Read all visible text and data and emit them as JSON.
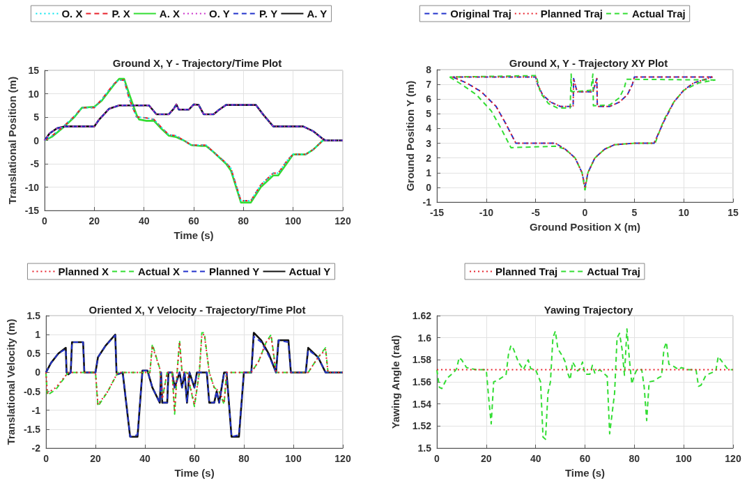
{
  "chart_data": [
    {
      "type": "line",
      "title": "Ground X, Y - Trajectory/Time Plot",
      "xlabel": "Time (s)",
      "ylabel": "Translational Position (m)",
      "xlim": [
        0,
        120
      ],
      "xticks": [
        0,
        20,
        40,
        60,
        80,
        100,
        120
      ],
      "ylim": [
        -15,
        15
      ],
      "yticks": [
        -15,
        -10,
        -5,
        0,
        5,
        10,
        15
      ],
      "grid": true,
      "legend": "top",
      "marker": "none",
      "series": [
        {
          "name": "O. X",
          "color": "#00e5ee",
          "line_style": "dotted",
          "x": [
            0,
            3,
            8,
            12,
            15,
            20,
            23,
            28,
            30,
            32,
            34,
            37,
            38,
            41,
            44,
            47,
            50,
            53,
            56,
            59,
            63,
            65,
            68,
            73,
            75,
            79,
            83,
            87,
            92,
            94,
            98,
            100,
            105,
            108,
            112,
            120
          ],
          "values": [
            0,
            1,
            3.2,
            5.2,
            7,
            7,
            8.8,
            12.2,
            12.9,
            12.9,
            9,
            5,
            5,
            4.8,
            4.5,
            2.8,
            1.2,
            1,
            0,
            -1,
            -1,
            -1,
            -2.5,
            -4.8,
            -6,
            -12.9,
            -12.9,
            -9.5,
            -7,
            -7,
            -4,
            -3,
            -3,
            -2,
            0,
            0
          ]
        },
        {
          "name": "P. X",
          "color": "#e8202a",
          "line_style": "dashed",
          "x": [
            0,
            3,
            8,
            12,
            15,
            20,
            23,
            28,
            30,
            32,
            34,
            37,
            38,
            41,
            44,
            47,
            50,
            53,
            56,
            59,
            63,
            65,
            68,
            73,
            75,
            79,
            83,
            87,
            92,
            94,
            98,
            100,
            105,
            108,
            112,
            120
          ],
          "values": [
            0,
            1,
            3.2,
            5.2,
            7,
            7,
            8.8,
            12.2,
            12.9,
            12.9,
            9,
            5,
            5,
            4.8,
            4.5,
            2.8,
            1.2,
            1,
            0,
            -1,
            -1,
            -1,
            -2.5,
            -4.8,
            -6,
            -12.9,
            -12.9,
            -9.5,
            -7,
            -7,
            -4,
            -3,
            -3,
            -2,
            0,
            0
          ]
        },
        {
          "name": "A. X",
          "color": "#33dd33",
          "line_style": "solid",
          "x": [
            0,
            3,
            8,
            12,
            15,
            20,
            23,
            28,
            30,
            32,
            34,
            37,
            38,
            41,
            44,
            47,
            50,
            53,
            56,
            59,
            63,
            65,
            68,
            73,
            75,
            79,
            83,
            87,
            92,
            94,
            98,
            100,
            105,
            108,
            112,
            120
          ],
          "values": [
            0,
            0.8,
            3,
            5,
            7,
            7.2,
            8.5,
            12,
            13.2,
            13.2,
            10,
            5.5,
            4.5,
            4.2,
            4.2,
            2.5,
            1,
            0.7,
            0,
            -1,
            -1.2,
            -1.2,
            -2.5,
            -5,
            -6.5,
            -13.3,
            -13.3,
            -10,
            -7.5,
            -7.5,
            -4.5,
            -3,
            -3,
            -2,
            0,
            0
          ]
        },
        {
          "name": "O. Y",
          "color": "#cc33cc",
          "line_style": "dotted",
          "x": [
            0,
            2,
            5,
            8,
            20,
            22,
            26,
            30,
            42,
            45,
            50,
            52,
            53,
            54,
            58,
            60,
            62,
            64,
            68,
            70,
            73,
            85,
            88,
            92,
            104,
            108,
            112,
            113,
            120
          ],
          "values": [
            0,
            1.5,
            2.6,
            3,
            3,
            4.5,
            6.8,
            7.5,
            7.5,
            5.6,
            5.6,
            6.8,
            7.7,
            6.6,
            6.6,
            7.7,
            7.6,
            5.6,
            5.6,
            6.5,
            7.6,
            7.6,
            5.5,
            3,
            3,
            2,
            0.3,
            0,
            0
          ]
        },
        {
          "name": "P. Y",
          "color": "#2233cc",
          "line_style": "dashed",
          "x": [
            0,
            2,
            5,
            8,
            20,
            22,
            26,
            30,
            42,
            45,
            50,
            52,
            53,
            54,
            58,
            60,
            62,
            64,
            68,
            70,
            73,
            85,
            88,
            92,
            104,
            108,
            112,
            113,
            120
          ],
          "values": [
            0,
            1.5,
            2.6,
            3,
            3,
            4.5,
            6.8,
            7.5,
            7.5,
            5.6,
            5.6,
            6.8,
            7.7,
            6.6,
            6.6,
            7.7,
            7.6,
            5.6,
            5.6,
            6.5,
            7.6,
            7.6,
            5.5,
            3,
            3,
            2,
            0.3,
            0,
            0
          ]
        },
        {
          "name": "A. Y",
          "color": "#111111",
          "line_style": "solid",
          "x": [
            0,
            2,
            5,
            8,
            20,
            22,
            26,
            30,
            42,
            45,
            50,
            52,
            53,
            54,
            58,
            60,
            62,
            64,
            68,
            70,
            73,
            85,
            88,
            92,
            104,
            108,
            112,
            113,
            120
          ],
          "values": [
            0,
            1.5,
            2.6,
            3,
            3,
            4.5,
            6.8,
            7.5,
            7.5,
            5.6,
            5.6,
            6.8,
            7.7,
            6.6,
            6.6,
            7.7,
            7.6,
            5.6,
            5.6,
            6.5,
            7.6,
            7.6,
            5.5,
            3,
            3,
            2,
            0.3,
            0,
            0
          ]
        }
      ]
    },
    {
      "type": "line",
      "title": "Ground X, Y - Trajectory XY Plot",
      "xlabel": "Ground Position X (m)",
      "ylabel": "Ground Position Y (m)",
      "xlim": [
        -15,
        15
      ],
      "xticks": [
        -15,
        -10,
        -5,
        0,
        5,
        10,
        15
      ],
      "ylim": [
        -1,
        8
      ],
      "yticks": [
        -1,
        0,
        1,
        2,
        3,
        4,
        5,
        6,
        7,
        8
      ],
      "grid": true,
      "legend": "top",
      "marker": "none",
      "series": [
        {
          "name": "Original Traj",
          "color": "#2233cc",
          "line_style": "dashed",
          "x": [
            0,
            0.3,
            1,
            2,
            3,
            5,
            7,
            8,
            9,
            10,
            11,
            12.9
          ],
          "values": [
            0,
            1,
            2,
            2.6,
            2.9,
            3,
            3,
            4.5,
            5.8,
            6.6,
            7.1,
            7.5
          ]
        },
        {
          "color": "#2233cc",
          "line_style": "dashed",
          "x": [
            12.9,
            5,
            4.8,
            4.3,
            3.5,
            2.5,
            1.25,
            1.2,
            0.8,
            -0.8,
            -1.15,
            -1.2,
            -2.5,
            -3.5,
            -4.3,
            -4.8,
            -5,
            -13.4
          ],
          "values": [
            7.5,
            7.5,
            7,
            6.3,
            5.8,
            5.5,
            5.5,
            7.4,
            6.5,
            6.5,
            7.4,
            5.5,
            5.5,
            5.8,
            6.3,
            7,
            7.5,
            7.5
          ]
        },
        {
          "color": "#2233cc",
          "line_style": "dashed",
          "x": [
            -13.4,
            -12,
            -10.5,
            -9,
            -8,
            -7,
            -3,
            -2,
            -1,
            -0.3,
            0
          ],
          "values": [
            7.5,
            7.1,
            6.5,
            5.5,
            4.3,
            3,
            3,
            2.6,
            2,
            1,
            0
          ]
        },
        {
          "name": "Planned Traj",
          "color": "#e8202a",
          "line_style": "dotted",
          "x": [
            0,
            0.3,
            1,
            2,
            3,
            5,
            7,
            8,
            9,
            10,
            11,
            12.9
          ],
          "values": [
            0,
            1,
            2,
            2.6,
            2.9,
            3,
            3,
            4.5,
            5.8,
            6.6,
            7.1,
            7.5
          ]
        },
        {
          "color": "#e8202a",
          "line_style": "dotted",
          "x": [
            12.9,
            5,
            4.8,
            4.3,
            3.5,
            2.5,
            1.25,
            1.2,
            0.8,
            -0.8,
            -1.15,
            -1.2,
            -2.5,
            -3.5,
            -4.3,
            -4.8,
            -5,
            -13.4
          ],
          "values": [
            7.5,
            7.5,
            7,
            6.3,
            5.8,
            5.5,
            5.5,
            7.4,
            6.5,
            6.5,
            7.4,
            5.5,
            5.5,
            5.8,
            6.3,
            7,
            7.5,
            7.5
          ]
        },
        {
          "color": "#e8202a",
          "line_style": "dotted",
          "x": [
            -13.4,
            -12,
            -10.5,
            -9,
            -8,
            -7,
            -3,
            -2,
            -1,
            -0.3,
            0
          ],
          "values": [
            7.5,
            7.1,
            6.5,
            5.5,
            4.3,
            3,
            3,
            2.6,
            2,
            1,
            0
          ]
        },
        {
          "name": "Actual Traj",
          "color": "#33dd33",
          "line_style": "dashed",
          "x": [
            0,
            0.3,
            1,
            2,
            3,
            5,
            7.1,
            8,
            9,
            10,
            11.5,
            13.2
          ],
          "values": [
            -0.2,
            1,
            2,
            2.6,
            2.9,
            3,
            3,
            4.6,
            5.8,
            6.6,
            7.1,
            7.3
          ]
        },
        {
          "color": "#33dd33",
          "line_style": "dashed",
          "x": [
            13.2,
            4.2,
            4,
            3.5,
            2.5,
            0.85,
            0.8,
            0.6,
            -1.35,
            -1.4,
            -1.5,
            -2.8,
            -3.7,
            -4.5,
            -4.8,
            -4.9,
            -13.7
          ],
          "values": [
            7.3,
            7.35,
            6.8,
            6.1,
            5.6,
            5.55,
            7.7,
            6.6,
            6.5,
            7.7,
            5.4,
            5.4,
            5.7,
            6.4,
            7.2,
            7.6,
            7.5
          ]
        },
        {
          "color": "#33dd33",
          "line_style": "dashed",
          "x": [
            -13.7,
            -12.5,
            -11,
            -9.5,
            -8.5,
            -7.5,
            -3,
            -2,
            -1,
            -0.3,
            0
          ],
          "values": [
            7.5,
            7,
            6.3,
            5.2,
            4,
            2.7,
            2.8,
            2.6,
            2,
            1,
            -0.2
          ]
        }
      ]
    },
    {
      "type": "line",
      "title": "Oriented X, Y Velocity - Trajectory/Time Plot",
      "xlabel": "Time (s)",
      "ylabel": "Translational Velocity (m)",
      "xlim": [
        0,
        120
      ],
      "xticks": [
        0,
        20,
        40,
        60,
        80,
        100,
        120
      ],
      "ylim": [
        -2,
        1.5
      ],
      "yticks": [
        -2,
        -1.5,
        -1,
        -0.5,
        0,
        0.5,
        1,
        1.5
      ],
      "grid": true,
      "legend": "top",
      "marker": "none",
      "series": [
        {
          "name": "Planned X",
          "color": "#e8202a",
          "line_style": "dotted",
          "x": [
            0,
            0.5,
            4,
            9,
            20,
            21,
            25,
            29,
            42,
            43,
            46,
            47,
            49,
            51,
            52,
            53,
            54,
            55,
            57,
            60,
            62,
            63,
            64,
            66,
            68,
            70,
            72,
            73,
            83,
            86,
            89,
            91,
            93,
            106,
            110,
            113,
            114,
            120
          ],
          "values": [
            0,
            -0.55,
            -0.4,
            0,
            0,
            -0.85,
            -0.5,
            0,
            0,
            0.7,
            0.1,
            -0.7,
            0,
            0,
            -1.05,
            0,
            0.8,
            0,
            0,
            -0.85,
            0,
            1,
            1,
            0,
            -0.4,
            -0.5,
            -0.8,
            0,
            0,
            0.3,
            0.8,
            0.95,
            0,
            0,
            0.4,
            0.6,
            0,
            0
          ]
        },
        {
          "name": "Actual X",
          "color": "#33dd33",
          "line_style": "dashed",
          "x": [
            0,
            0.5,
            4,
            9,
            20,
            21,
            25,
            29,
            42,
            43,
            46,
            47,
            49,
            51,
            52,
            53,
            54,
            55,
            57,
            60,
            62,
            63,
            64,
            66,
            68,
            70,
            72,
            73,
            83,
            86,
            89,
            91,
            93,
            106,
            110,
            113,
            114,
            120
          ],
          "values": [
            0,
            -0.6,
            -0.45,
            0,
            0,
            -0.9,
            -0.5,
            0,
            0,
            0.75,
            0.1,
            -0.7,
            0,
            0,
            -1.1,
            0,
            0.85,
            0,
            0,
            -0.9,
            0,
            1.05,
            1.05,
            0,
            -0.4,
            -0.5,
            -0.85,
            0,
            0,
            0.3,
            0.8,
            1,
            0,
            0,
            0.4,
            0.65,
            0,
            0
          ]
        },
        {
          "name": "Planned Y",
          "color": "#2233cc",
          "line_style": "dashed",
          "x": [
            0,
            2,
            5,
            8,
            8.3,
            9,
            10,
            10.5,
            15,
            15.5,
            20,
            21,
            24,
            28,
            28.5,
            29,
            31,
            34,
            37,
            39,
            41,
            43,
            46,
            46.5,
            47,
            49,
            49.5,
            51,
            52,
            54,
            55,
            56,
            57,
            58,
            59,
            60,
            61,
            65,
            66,
            68,
            69,
            70,
            72,
            73,
            75,
            78,
            80,
            83,
            84,
            87,
            90,
            93,
            94,
            98,
            99,
            105,
            106,
            110,
            113,
            120
          ],
          "values": [
            0,
            0.25,
            0.5,
            0.62,
            0,
            -0.05,
            0,
            0.8,
            0.8,
            0,
            0,
            0.4,
            0.7,
            0.98,
            0,
            -0.05,
            0,
            -1.7,
            -1.65,
            0.05,
            0.05,
            -0.4,
            -0.8,
            0,
            -0.8,
            -0.8,
            0,
            0,
            -0.4,
            0,
            -0.4,
            0,
            -0.8,
            0,
            -0.2,
            -0.4,
            0,
            0,
            -0.8,
            -0.8,
            -0.5,
            -0.8,
            0,
            0,
            -1.7,
            -1.65,
            0,
            0,
            0.95,
            0.8,
            0.45,
            0,
            0.85,
            0.8,
            0,
            0,
            0.6,
            0.4,
            0,
            0
          ]
        },
        {
          "name": "Actual Y",
          "color": "#111111",
          "line_style": "solid",
          "x": [
            0,
            2,
            5,
            8,
            8.3,
            9,
            10,
            10.5,
            15,
            15.5,
            20,
            21,
            24,
            28,
            28.5,
            29,
            31,
            34,
            37,
            39,
            41,
            43,
            46,
            46.5,
            47,
            49,
            49.5,
            51,
            52,
            54,
            55,
            56,
            57,
            58,
            59,
            60,
            61,
            65,
            66,
            68,
            69,
            70,
            72,
            73,
            75,
            78,
            80,
            83,
            84,
            87,
            90,
            93,
            94,
            98,
            99,
            105,
            106,
            110,
            113,
            120
          ],
          "values": [
            0,
            0.25,
            0.5,
            0.65,
            0,
            -0.05,
            0,
            0.8,
            0.8,
            0,
            0,
            0.4,
            0.7,
            1,
            0,
            -0.05,
            0,
            -1.7,
            -1.7,
            0.05,
            0.05,
            -0.4,
            -0.8,
            0,
            -0.8,
            -0.8,
            0,
            0,
            -0.4,
            0,
            -0.4,
            0,
            -0.8,
            0,
            -0.2,
            -0.4,
            0,
            0,
            -0.8,
            -0.8,
            -0.5,
            -0.8,
            0,
            0,
            -1.7,
            -1.7,
            0,
            0,
            1.05,
            0.85,
            0.5,
            0,
            0.85,
            0.85,
            0,
            0,
            0.65,
            0.4,
            0,
            0
          ]
        }
      ]
    },
    {
      "type": "line",
      "title": "Yawing Trajectory",
      "xlabel": "Time (s)",
      "ylabel": "Yawing Angle (rad)",
      "xlim": [
        0,
        120
      ],
      "xticks": [
        0,
        20,
        40,
        60,
        80,
        100,
        120
      ],
      "ylim": [
        1.5,
        1.62
      ],
      "yticks": [
        1.5,
        1.52,
        1.54,
        1.56,
        1.58,
        1.6,
        1.62
      ],
      "grid": true,
      "legend": "top",
      "marker": "none",
      "series": [
        {
          "name": "Planned Traj",
          "color": "#e8202a",
          "line_style": "dotted",
          "x": [
            0,
            120
          ],
          "values": [
            1.571,
            1.571
          ]
        },
        {
          "name": "Actual Traj",
          "color": "#33dd33",
          "line_style": "dashed",
          "x": [
            0,
            1,
            2,
            4,
            7,
            8,
            9,
            10,
            12,
            16,
            20,
            21,
            22,
            23,
            25,
            27,
            28,
            29,
            30,
            31,
            33,
            35,
            37,
            38,
            40,
            42,
            43,
            44,
            45,
            46,
            47,
            48,
            49,
            51,
            52,
            53,
            54,
            55,
            57,
            58,
            59,
            60,
            62,
            63,
            64,
            66,
            69,
            70,
            72,
            73,
            74,
            75,
            76,
            77,
            78,
            79,
            80,
            81,
            83,
            84,
            85,
            86,
            88,
            90,
            91,
            92,
            93,
            94,
            96,
            98,
            99,
            102,
            105,
            106,
            107,
            109,
            111,
            113,
            114,
            116,
            118,
            120
          ],
          "values": [
            1.571,
            1.555,
            1.554,
            1.563,
            1.569,
            1.572,
            1.582,
            1.58,
            1.573,
            1.571,
            1.571,
            1.545,
            1.522,
            1.56,
            1.562,
            1.565,
            1.566,
            1.585,
            1.593,
            1.59,
            1.578,
            1.571,
            1.58,
            1.572,
            1.571,
            1.56,
            1.51,
            1.508,
            1.55,
            1.56,
            1.6,
            1.606,
            1.59,
            1.583,
            1.578,
            1.568,
            1.562,
            1.578,
            1.57,
            1.572,
            1.578,
            1.567,
            1.567,
            1.575,
            1.568,
            1.571,
            1.565,
            1.513,
            1.55,
            1.6,
            1.604,
            1.59,
            1.566,
            1.608,
            1.58,
            1.558,
            1.566,
            1.571,
            1.571,
            1.555,
            1.525,
            1.56,
            1.561,
            1.564,
            1.565,
            1.59,
            1.596,
            1.576,
            1.574,
            1.571,
            1.573,
            1.571,
            1.571,
            1.556,
            1.557,
            1.566,
            1.568,
            1.57,
            1.583,
            1.577,
            1.571,
            1.571
          ]
        }
      ]
    }
  ]
}
